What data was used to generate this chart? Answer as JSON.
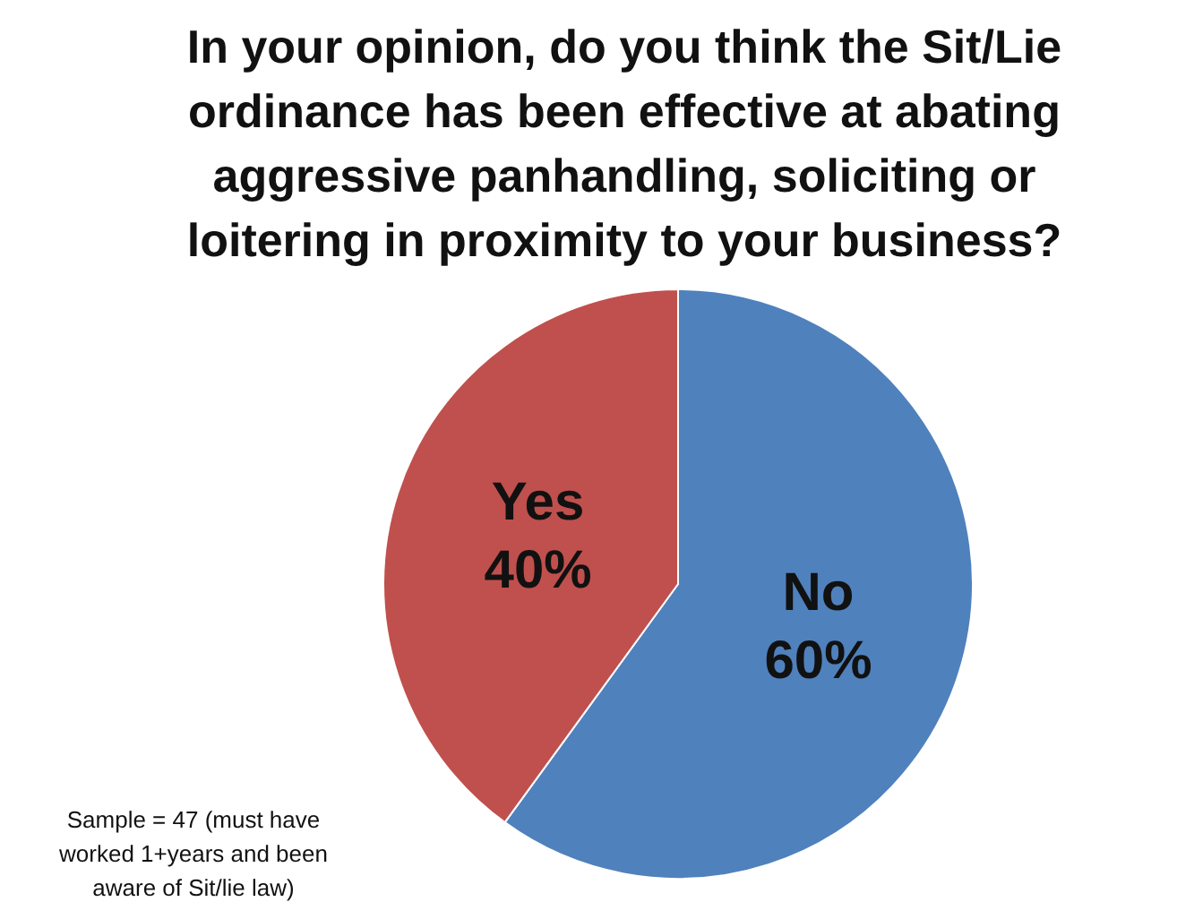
{
  "chart_data": {
    "type": "pie",
    "title": "In your opinion, do you think the Sit/Lie ordinance has been effective  at abating aggressive panhandling, soliciting or loitering in proximity  to your business?",
    "categories": [
      "No",
      "Yes"
    ],
    "values": [
      60,
      40
    ],
    "colors": [
      "#4f81bd",
      "#c0504d"
    ],
    "value_labels": [
      "60%",
      "40%"
    ],
    "legend": false,
    "annotations": [
      "Sample = 47 (must have worked 1+years and been aware of Sit/lie law)"
    ]
  }
}
